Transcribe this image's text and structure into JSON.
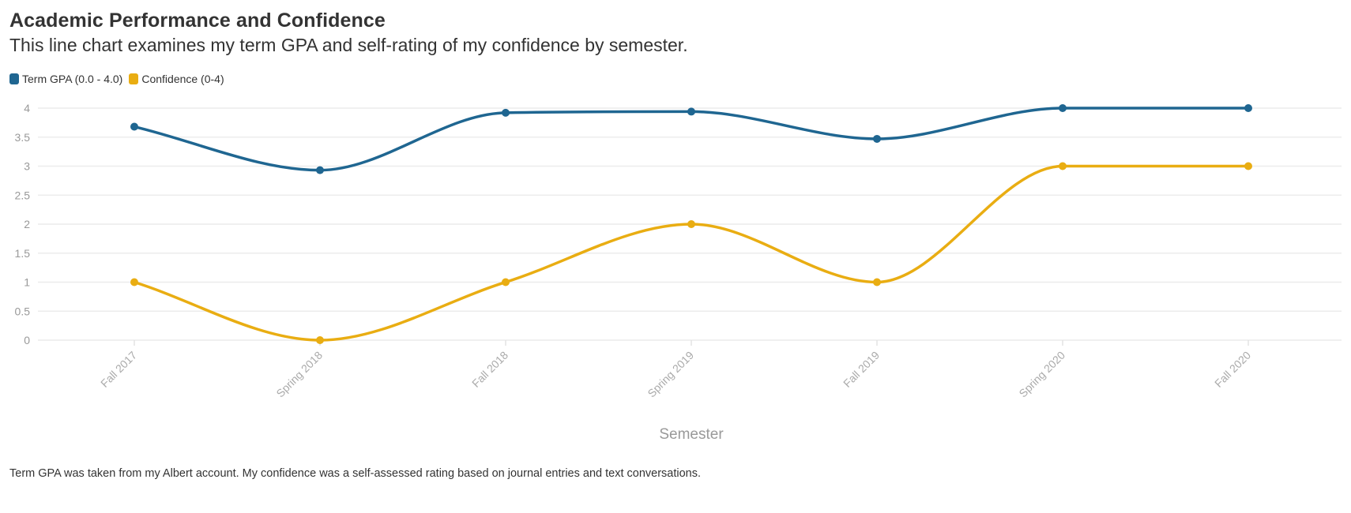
{
  "chart_data": {
    "type": "line",
    "title": "Academic Performance and Confidence",
    "subtitle": "This line chart examines my term GPA and self-rating of my confidence by semester.",
    "xlabel": "Semester",
    "ylabel": "",
    "categories": [
      "Fall 2017",
      "Spring 2018",
      "Fall 2018",
      "Spring 2019",
      "Fall 2019",
      "Spring 2020",
      "Fall 2020"
    ],
    "series": [
      {
        "name": "Term GPA (0.0 - 4.0)",
        "color": "#1f6691",
        "values": [
          3.68,
          2.93,
          3.92,
          3.94,
          3.47,
          4.0,
          4.0
        ]
      },
      {
        "name": "Confidence (0-4)",
        "color": "#e9ad12",
        "values": [
          1,
          0,
          1,
          2,
          1,
          3,
          3
        ]
      }
    ],
    "ylim": [
      0,
      4
    ],
    "yticks": [
      "0",
      "0.5",
      "1",
      "1.5",
      "2",
      "2.5",
      "3",
      "3.5",
      "4"
    ],
    "grid": true,
    "legend": "top-left",
    "curve": "smooth",
    "note": "Term GPA was taken from my Albert account. My confidence was a self-assessed rating based on journal entries and text conversations."
  }
}
